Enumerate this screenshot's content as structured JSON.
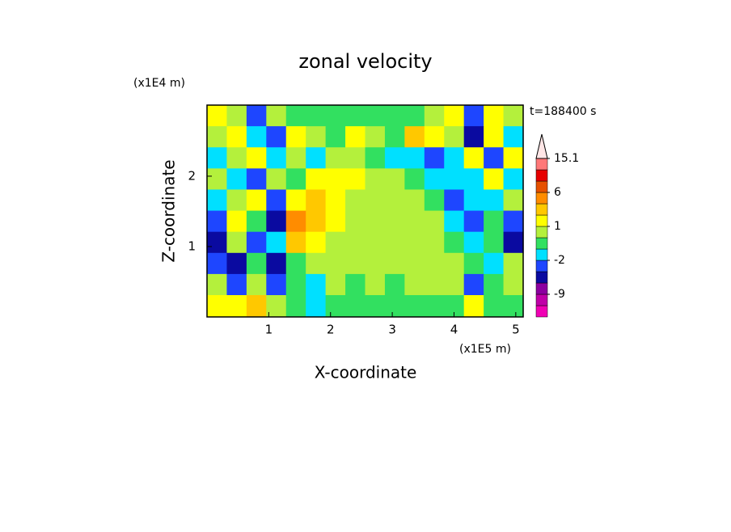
{
  "chart_data": {
    "type": "contour",
    "title": "zonal velocity",
    "time_label": "t=188400 s",
    "xlabel": "X-coordinate",
    "ylabel": "Z-coordinate",
    "x_scale_label": "(x1E5 m)",
    "y_scale_label": "(x1E4 m)",
    "xlim": [
      0,
      5.12
    ],
    "ylim": [
      0,
      3.01
    ],
    "xticks": [
      1,
      2,
      3,
      4,
      5
    ],
    "yticks": [
      1,
      2
    ],
    "x": [
      0.16,
      0.48,
      0.8,
      1.12,
      1.44,
      1.76,
      2.08,
      2.4,
      2.72,
      3.04,
      3.36,
      3.68,
      4.0,
      4.32,
      4.64,
      4.96
    ],
    "y": [
      2.86,
      2.56,
      2.26,
      1.96,
      1.66,
      1.36,
      1.06,
      0.76,
      0.46,
      0.16
    ],
    "z": [
      [
        1.5,
        0.5,
        -3,
        0.5,
        -0.5,
        -0.5,
        -0.5,
        -0.5,
        -0.5,
        -0.5,
        -0.5,
        0.5,
        1.5,
        -3,
        1.5,
        0.5
      ],
      [
        0.5,
        1.5,
        -1.5,
        -3,
        1.5,
        0.5,
        -0.5,
        1.5,
        0.5,
        -0.5,
        3,
        1.5,
        0.5,
        -5,
        1.5,
        -1.5
      ],
      [
        -1.5,
        0.5,
        1.5,
        -1.5,
        0.5,
        -1.5,
        0.5,
        0.5,
        -0.5,
        -1.5,
        -1.5,
        -3,
        -1.5,
        1.5,
        -3,
        1.5
      ],
      [
        0.5,
        -1.5,
        -3,
        0.5,
        -0.5,
        1.5,
        1.5,
        1.5,
        0.5,
        0.5,
        -0.5,
        -1.5,
        -1.5,
        -1.5,
        1.5,
        -1.5
      ],
      [
        -1.5,
        0.5,
        1.5,
        -3,
        1.5,
        3,
        1.5,
        0.5,
        0.5,
        0.5,
        0.5,
        -0.5,
        -3,
        -1.5,
        -1.5,
        0.5
      ],
      [
        -3,
        1.5,
        -0.5,
        -5,
        5,
        3,
        1.5,
        0.5,
        0.5,
        0.5,
        0.5,
        0.5,
        -1.5,
        -3,
        -0.5,
        -3
      ],
      [
        -5,
        0.5,
        -3,
        -1.5,
        3,
        1.5,
        0.5,
        0.5,
        0.5,
        0.5,
        0.5,
        0.5,
        -0.5,
        -1.5,
        -0.5,
        -5
      ],
      [
        -3,
        -5,
        -0.5,
        -5,
        -0.5,
        0.5,
        0.5,
        0.5,
        0.5,
        0.5,
        0.5,
        0.5,
        0.5,
        -0.5,
        -1.5,
        0.5
      ],
      [
        0.5,
        -3,
        0.5,
        -3,
        -0.5,
        -1.5,
        0.5,
        -0.5,
        0.5,
        -0.5,
        0.5,
        0.5,
        0.5,
        -3,
        -0.5,
        0.5
      ],
      [
        1.5,
        1.5,
        3,
        0.5,
        -0.5,
        -1.5,
        -0.5,
        -0.5,
        -0.5,
        -0.5,
        -0.5,
        -0.5,
        -0.5,
        1.5,
        -0.5,
        -0.5
      ]
    ],
    "levels": [
      -15,
      -12,
      -9,
      -6,
      -4,
      -2,
      -1,
      0,
      1,
      2,
      4,
      6,
      9,
      12,
      15.1
    ],
    "colors": [
      "#f000b4",
      "#c000a8",
      "#8c00a0",
      "#0a0aa0",
      "#1e46ff",
      "#00e0ff",
      "#32e060",
      "#b4f03c",
      "#ffff00",
      "#ffc800",
      "#ff8c00",
      "#e65000",
      "#e60000",
      "#ff7878",
      "#ffb4b4"
    ],
    "over_color": "#ffe6e6",
    "colorbar_ticks": [
      -9,
      -2,
      1,
      6,
      15.1
    ]
  }
}
